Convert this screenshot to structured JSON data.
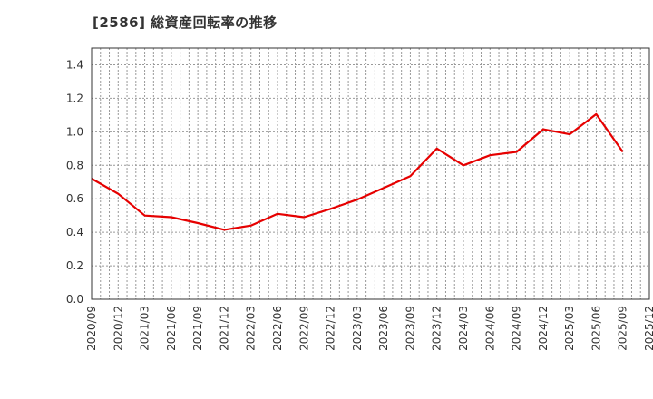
{
  "title": "[2586]  総資産回転率の推移",
  "chart_data": {
    "type": "line",
    "title": "[2586]  総資産回転率の推移",
    "xlabel": "",
    "ylabel": "",
    "ylim": [
      0.0,
      1.5
    ],
    "yticks": [
      "0.0",
      "0.2",
      "0.4",
      "0.6",
      "0.8",
      "1.0",
      "1.2",
      "1.4"
    ],
    "xticks": [
      "2020/09",
      "2020/12",
      "2021/03",
      "2021/06",
      "2021/09",
      "2021/12",
      "2022/03",
      "2022/06",
      "2022/09",
      "2022/12",
      "2023/03",
      "2023/06",
      "2023/09",
      "2023/12",
      "2024/03",
      "2024/06",
      "2024/09",
      "2024/12",
      "2025/03",
      "2025/06",
      "2025/09",
      "2025/12"
    ],
    "grid": true,
    "legend": null,
    "series": [
      {
        "name": "総資産回転率",
        "color": "#e60000",
        "x": [
          "2020/09",
          "2020/12",
          "2021/03",
          "2021/06",
          "2021/09",
          "2021/12",
          "2022/03",
          "2022/06",
          "2022/09",
          "2022/12",
          "2023/03",
          "2023/06",
          "2023/09",
          "2023/12",
          "2024/03",
          "2024/06",
          "2024/09",
          "2024/12",
          "2025/03",
          "2025/06",
          "2025/09"
        ],
        "values": [
          0.72,
          0.63,
          0.5,
          0.49,
          0.455,
          0.415,
          0.44,
          0.51,
          0.49,
          0.54,
          0.595,
          0.665,
          0.735,
          0.9,
          0.8,
          0.86,
          0.88,
          1.015,
          0.985,
          1.105,
          0.88
        ]
      }
    ]
  }
}
